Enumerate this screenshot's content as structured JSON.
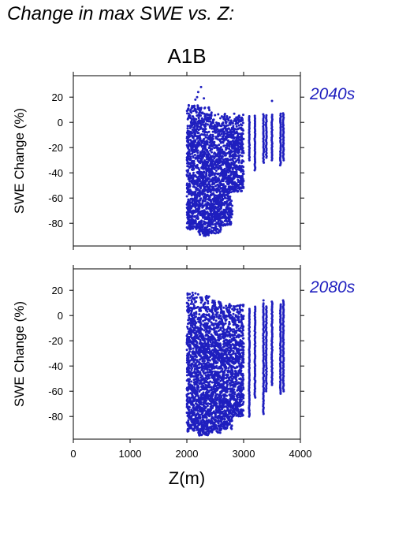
{
  "figure": {
    "title": "Change in max SWE vs. Z:",
    "subtitle": "A1B",
    "xlabel": "Z(m)",
    "ylabel": "SWE Change (%)",
    "point_color": "#1f1fbf"
  },
  "chart_data": [
    {
      "type": "scatter",
      "panel_label": "2040s",
      "xlabel": "",
      "ylabel": "SWE Change (%)",
      "xlim": [
        0,
        4000
      ],
      "ylim": [
        -98,
        37
      ],
      "xticks": [
        0,
        1000,
        2000,
        3000,
        4000
      ],
      "yticks": [
        -80,
        -60,
        -40,
        -20,
        0,
        20
      ],
      "grid": false,
      "color": "#1f1fbf",
      "bands": [
        {
          "x": [
            2000,
            2200
          ],
          "y": [
            -85,
            14
          ]
        },
        {
          "x": [
            2200,
            2400
          ],
          "y": [
            -90,
            12
          ]
        },
        {
          "x": [
            2400,
            2600
          ],
          "y": [
            -88,
            8
          ]
        },
        {
          "x": [
            2600,
            2800
          ],
          "y": [
            -82,
            7
          ]
        },
        {
          "x": [
            2800,
            3000
          ],
          "y": [
            -55,
            7
          ]
        }
      ],
      "columns": [
        {
          "x": 3100,
          "y": [
            -30,
            5
          ]
        },
        {
          "x": 3200,
          "y": [
            -38,
            6
          ]
        },
        {
          "x": 3350,
          "y": [
            -32,
            7
          ]
        },
        {
          "x": 3400,
          "y": [
            -28,
            6
          ]
        },
        {
          "x": 3500,
          "y": [
            -30,
            7
          ]
        },
        {
          "x": 3650,
          "y": [
            -34,
            7
          ]
        },
        {
          "x": 3700,
          "y": [
            -30,
            8
          ]
        }
      ],
      "outliers": [
        [
          2200,
          24
        ],
        [
          2180,
          20
        ],
        [
          2250,
          28
        ],
        [
          2300,
          19
        ],
        [
          2150,
          18
        ],
        [
          3500,
          17
        ]
      ]
    },
    {
      "type": "scatter",
      "panel_label": "2080s",
      "xlabel": "Z(m)",
      "ylabel": "SWE Change (%)",
      "xlim": [
        0,
        4000
      ],
      "ylim": [
        -98,
        37
      ],
      "xticks": [
        0,
        1000,
        2000,
        3000,
        4000
      ],
      "yticks": [
        -80,
        -60,
        -40,
        -20,
        0,
        20
      ],
      "grid": false,
      "color": "#1f1fbf",
      "bands": [
        {
          "x": [
            2000,
            2200
          ],
          "y": [
            -92,
            18
          ]
        },
        {
          "x": [
            2200,
            2400
          ],
          "y": [
            -95,
            16
          ]
        },
        {
          "x": [
            2400,
            2600
          ],
          "y": [
            -93,
            12
          ]
        },
        {
          "x": [
            2600,
            2800
          ],
          "y": [
            -90,
            10
          ]
        },
        {
          "x": [
            2800,
            3000
          ],
          "y": [
            -80,
            9
          ]
        }
      ],
      "columns": [
        {
          "x": 3100,
          "y": [
            -80,
            6
          ]
        },
        {
          "x": 3200,
          "y": [
            -65,
            8
          ]
        },
        {
          "x": 3350,
          "y": [
            -78,
            10
          ]
        },
        {
          "x": 3400,
          "y": [
            -60,
            8
          ]
        },
        {
          "x": 3500,
          "y": [
            -55,
            12
          ]
        },
        {
          "x": 3650,
          "y": [
            -62,
            9
          ]
        },
        {
          "x": 3700,
          "y": [
            -60,
            13
          ]
        }
      ],
      "outliers": [
        [
          2100,
          18
        ],
        [
          2050,
          17
        ],
        [
          3350,
          12
        ]
      ]
    }
  ]
}
